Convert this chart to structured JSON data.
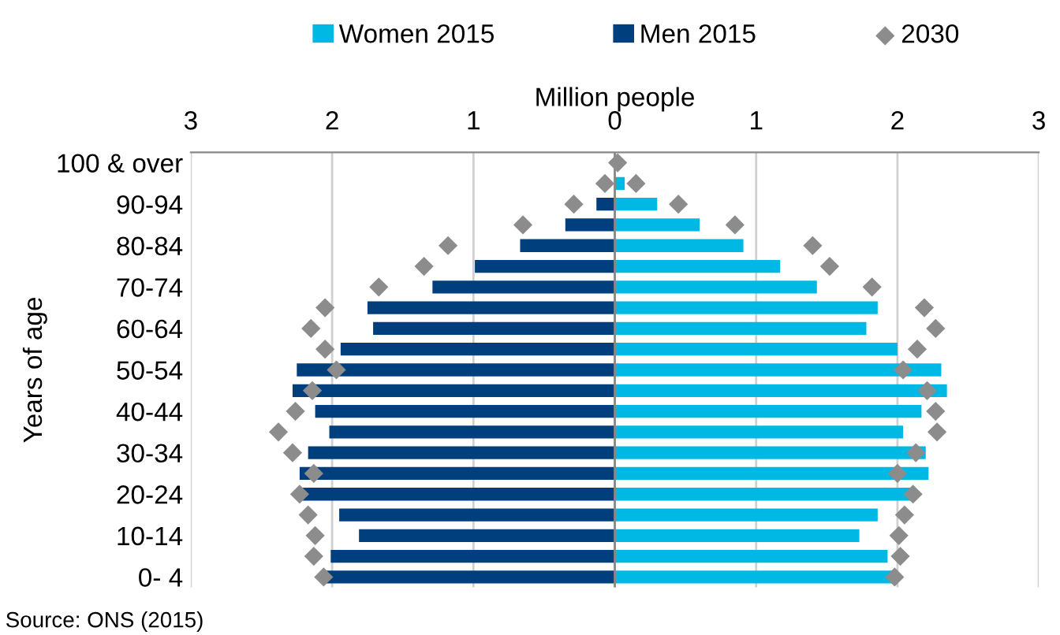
{
  "chart_data": {
    "type": "bar",
    "orientation": "horizontal",
    "stacked": true,
    "xlabel": "Million people",
    "ylabel": "Years of age",
    "categories": [
      "100 & over",
      null,
      "90-94",
      null,
      "80-84",
      null,
      "70-74",
      null,
      "60-64",
      null,
      "50-54",
      null,
      "40-44",
      null,
      "30-34",
      null,
      "20-24",
      null,
      "10-14",
      null,
      "0- 4"
    ],
    "series": [
      {
        "name": "Women 2015",
        "color": "#00b8e4",
        "values": [
          null,
          0.07,
          0.3,
          0.6,
          0.91,
          1.17,
          1.43,
          1.86,
          1.78,
          2.0,
          2.31,
          2.35,
          2.17,
          2.04,
          2.2,
          2.22,
          2.1,
          1.86,
          1.73,
          1.93,
          1.97
        ]
      },
      {
        "name": "Men 2015",
        "color": "#003f7d",
        "values": [
          null,
          null,
          -0.13,
          -0.35,
          -0.67,
          -0.99,
          -1.29,
          -1.75,
          -1.71,
          -1.94,
          -2.25,
          -2.28,
          -2.12,
          -2.02,
          -2.17,
          -2.23,
          -2.21,
          -1.95,
          -1.81,
          -2.01,
          -2.04
        ]
      },
      {
        "name": "2030",
        "type": "scatter",
        "marker": "diamond",
        "color": "#8c8c8c",
        "values": [
          null,
          -0.07,
          -0.29,
          -0.65,
          -1.18,
          -1.35,
          -1.67,
          -2.05,
          -2.15,
          -2.05,
          -1.97,
          -2.14,
          -2.26,
          -2.38,
          -2.28,
          -2.13,
          -2.23,
          -2.17,
          -2.12,
          -2.13,
          -2.06
        ]
      },
      {
        "type": "scatter",
        "marker": "diamond",
        "color": "#8c8c8c",
        "values": [
          0.02,
          0.15,
          0.45,
          0.85,
          1.4,
          1.52,
          1.82,
          2.19,
          2.27,
          2.14,
          2.04,
          2.21,
          2.27,
          2.28,
          2.13,
          2.0,
          2.11,
          2.05,
          2.01,
          2.02,
          1.98
        ]
      }
    ],
    "xlim": [
      -3,
      3
    ],
    "xticks": [
      {
        "value": -3,
        "label": "3"
      },
      {
        "value": -2,
        "label": "2"
      },
      {
        "value": -1,
        "label": "1"
      },
      0,
      1,
      2,
      3
    ],
    "grid": "x",
    "legend": "top",
    "annotations": [
      "Source: ONS (2015)"
    ]
  }
}
